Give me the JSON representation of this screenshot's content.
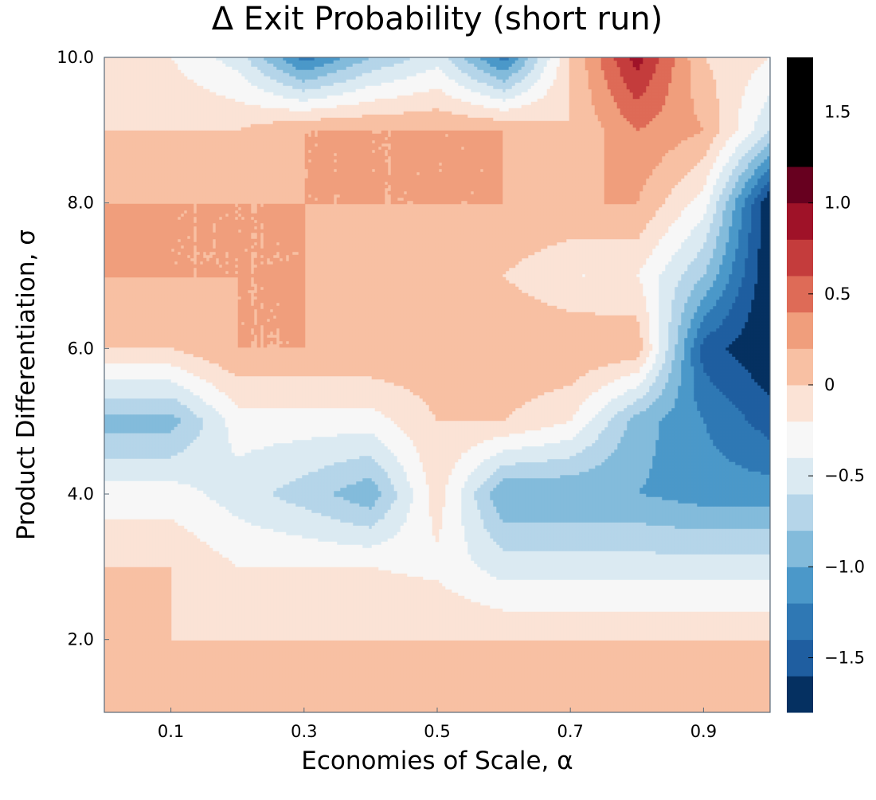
{
  "chart_data": {
    "type": "heatmap",
    "subtype": "filled-contour",
    "title": "Δ Exit Probability (short run)",
    "xlabel": "Economies of Scale, α",
    "ylabel": "Product Differentiation, σ",
    "xlim": [
      0.0,
      1.0
    ],
    "ylim": [
      1.0,
      10.0
    ],
    "x_ticks": [
      0.1,
      0.3,
      0.5,
      0.7,
      0.9
    ],
    "x_tick_labels": [
      "0.1",
      "0.3",
      "0.5",
      "0.7",
      "0.9"
    ],
    "y_ticks": [
      2.0,
      4.0,
      6.0,
      8.0,
      10.0
    ],
    "y_tick_labels": [
      "2.0",
      "4.0",
      "6.0",
      "8.0",
      "10.0"
    ],
    "x": [
      0.1,
      0.2,
      0.3,
      0.4,
      0.5,
      0.6,
      0.7,
      0.8,
      0.9,
      1.0
    ],
    "y": [
      1.0,
      2.0,
      3.0,
      4.0,
      5.0,
      6.0,
      7.0,
      8.0,
      9.0,
      10.0
    ],
    "z": [
      [
        0.0,
        0.0,
        0.0,
        0.0,
        0.0,
        0.0,
        0.0,
        0.0,
        0.0,
        0.0
      ],
      [
        0.0,
        0.0,
        0.0,
        0.0,
        0.0,
        0.0,
        0.0,
        0.0,
        0.0,
        0.0
      ],
      [
        0.0,
        -0.2,
        -0.2,
        -0.2,
        -0.25,
        -0.5,
        -0.5,
        -0.5,
        -0.5,
        -0.5
      ],
      [
        -0.3,
        -0.5,
        -0.7,
        -0.95,
        -0.1,
        -1.0,
        -1.0,
        -1.0,
        -1.1,
        -1.1
      ],
      [
        -0.9,
        -0.3,
        -0.3,
        -0.3,
        0.0,
        0.0,
        -0.2,
        -0.9,
        -1.2,
        -1.5
      ],
      [
        0.0,
        0.2,
        0.2,
        0.2,
        0.15,
        0.2,
        0.2,
        0.15,
        -1.5,
        -1.8
      ],
      [
        0.2,
        0.2,
        0.2,
        0.0,
        0.0,
        0.0,
        -0.2,
        -0.2,
        -0.8,
        -1.8
      ],
      [
        0.2,
        0.2,
        0.2,
        0.2,
        0.2,
        0.2,
        0.2,
        0.2,
        -0.3,
        -1.8
      ],
      [
        0.0,
        0.0,
        0.2,
        0.2,
        0.2,
        0.2,
        0.0,
        0.4,
        0.2,
        -0.6
      ],
      [
        -0.2,
        -0.5,
        -1.3,
        -0.8,
        -0.5,
        -1.3,
        0.0,
        0.9,
        0.0,
        -0.2
      ]
    ],
    "levels": [
      -1.8,
      -1.6,
      -1.4,
      -1.2,
      -1.0,
      -0.8,
      -0.6,
      -0.4,
      -0.2,
      -0.0,
      0.2,
      0.4,
      0.6,
      0.8,
      1.0,
      1.2,
      1.4,
      1.6,
      1.8
    ],
    "level_colors": [
      "#053061",
      "#1f5ea0",
      "#2f78b4",
      "#4b98c9",
      "#83bbdb",
      "#b5d5e9",
      "#dbeaf2",
      "#f7f7f7",
      "#fbe3d6",
      "#f8c0a3",
      "#f09e7c",
      "#de6b57",
      "#c43c3c",
      "#9f1228",
      "#67001f"
    ],
    "colorbar": {
      "range": [
        -1.8,
        1.8
      ],
      "ticks": [
        1.5,
        1.0,
        0.5,
        0.0,
        -0.5,
        -1.0,
        -1.5
      ],
      "tick_labels": [
        "1.5",
        "1.0",
        "0.5",
        "0",
        "−0.5",
        "−1.0",
        "−1.5"
      ]
    },
    "grid": false,
    "legend": "colorbar-right"
  }
}
